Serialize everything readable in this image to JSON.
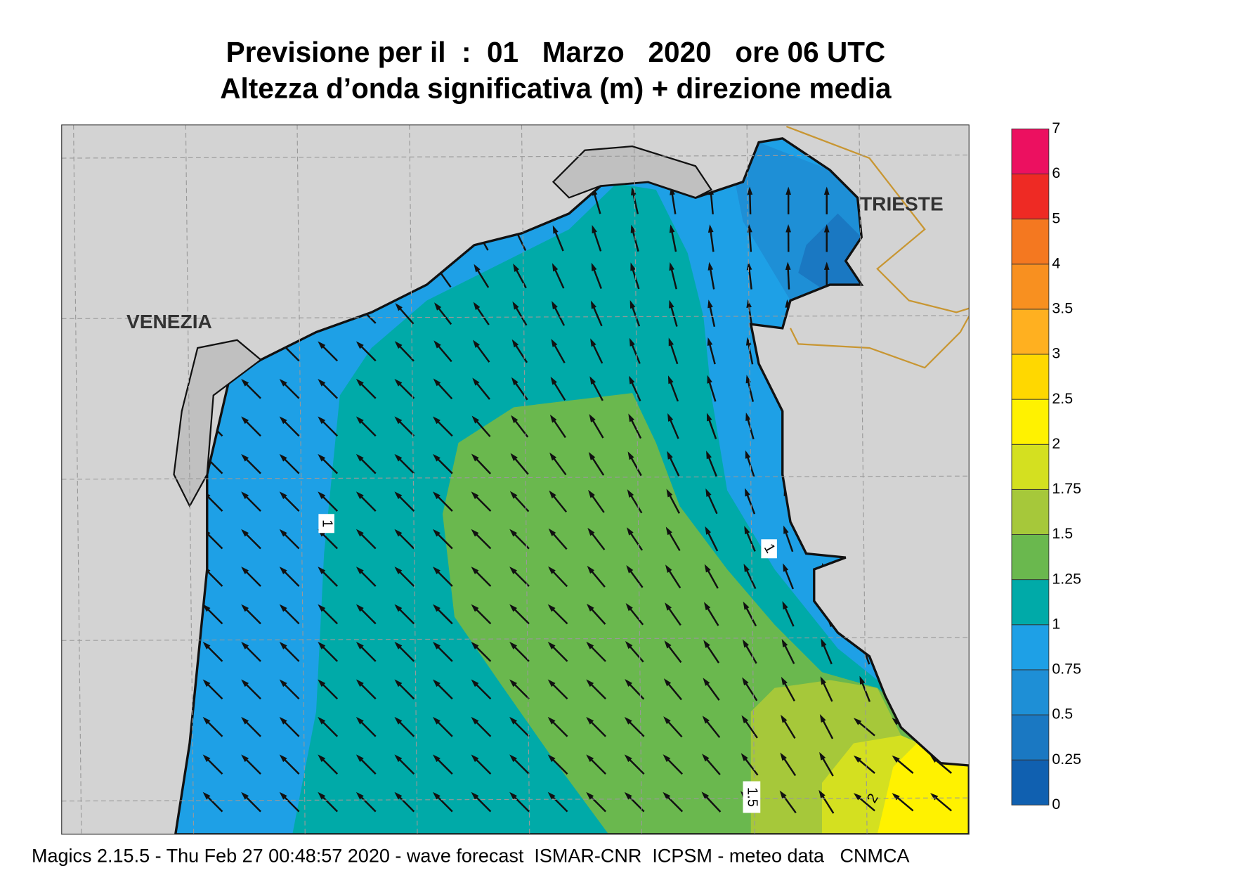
{
  "header": {
    "title": "Previsione per il  :  01   Marzo   2020   ore 06 UTC",
    "subtitle": "Altezza d’onda significativa (m) + direzione media"
  },
  "places": [
    "VENEZIA",
    "TRIESTE"
  ],
  "contour_labels": [
    "1",
    "1",
    "1.5",
    "2"
  ],
  "colorbar": {
    "levels": [
      0,
      0.25,
      0.5,
      0.75,
      1,
      1.25,
      1.5,
      1.75,
      2,
      2.5,
      3,
      3.5,
      4,
      5,
      6,
      7
    ],
    "colors": [
      "#1060b0",
      "#1a78c2",
      "#1e8fd6",
      "#1ea0e6",
      "#00aaa8",
      "#6ab84e",
      "#a6c83a",
      "#d4e020",
      "#fff200",
      "#ffd800",
      "#ffb020",
      "#f89020",
      "#f47820",
      "#ee2a24",
      "#ec1060"
    ]
  },
  "footer": "Magics 2.15.5 - Thu Feb 27 00:48:57 2020 - wave forecast  ISMAR-CNR  ICPSM - meteo data   CNMCA"
}
